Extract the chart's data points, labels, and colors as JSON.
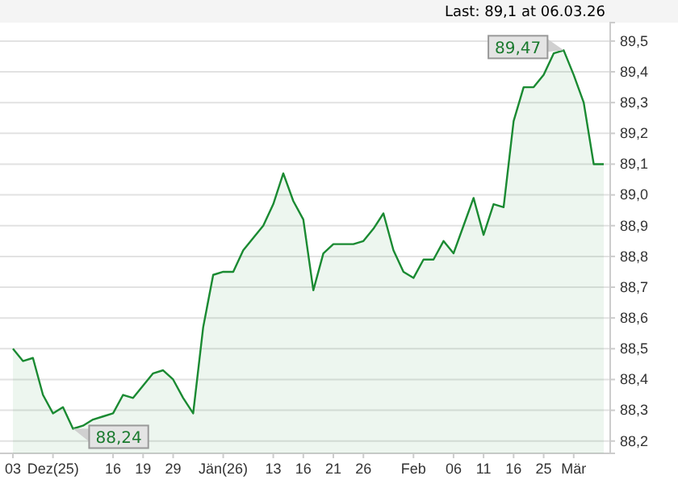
{
  "chart_data": {
    "type": "area",
    "title": "Last: 89,1 at 06.03.26",
    "categories": [
      "03",
      null,
      null,
      null,
      "Dez(25)",
      null,
      null,
      null,
      null,
      null,
      "16",
      null,
      null,
      "19",
      null,
      null,
      "29",
      null,
      null,
      null,
      null,
      "Jän(26)",
      null,
      null,
      null,
      null,
      "13",
      null,
      null,
      "16",
      null,
      null,
      "21",
      null,
      null,
      "26",
      null,
      null,
      null,
      null,
      "Feb",
      null,
      null,
      null,
      "06",
      null,
      null,
      "11",
      null,
      null,
      "16",
      null,
      null,
      "25",
      null,
      null,
      "Mär",
      null,
      null,
      null
    ],
    "series": [
      {
        "color": "#1a8a32",
        "values": [
          88.5,
          88.46,
          88.47,
          88.35,
          88.29,
          88.31,
          88.24,
          88.25,
          88.27,
          88.28,
          88.29,
          88.35,
          88.34,
          88.38,
          88.42,
          88.43,
          88.4,
          88.34,
          88.29,
          88.57,
          88.74,
          88.75,
          88.75,
          88.82,
          88.86,
          88.9,
          88.97,
          89.07,
          88.98,
          88.92,
          88.69,
          88.81,
          88.84,
          88.84,
          88.84,
          88.85,
          88.89,
          88.94,
          88.82,
          88.75,
          88.73,
          88.79,
          88.79,
          88.85,
          88.81,
          88.9,
          88.99,
          88.87,
          88.97,
          88.96,
          89.24,
          89.35,
          89.35,
          89.39,
          89.46,
          89.47,
          89.39,
          89.3,
          89.1,
          89.1
        ]
      }
    ],
    "ylim": [
      88.16,
      89.56
    ],
    "yticks": [
      {
        "value": 88.2,
        "label": "88,2"
      },
      {
        "value": 88.3,
        "label": "88,3"
      },
      {
        "value": 88.4,
        "label": "88,4"
      },
      {
        "value": 88.5,
        "label": "88,5"
      },
      {
        "value": 88.6,
        "label": "88,6"
      },
      {
        "value": 88.7,
        "label": "88,7"
      },
      {
        "value": 88.8,
        "label": "88,8"
      },
      {
        "value": 88.9,
        "label": "88,9"
      },
      {
        "value": 89.0,
        "label": "89,0"
      },
      {
        "value": 89.1,
        "label": "89,1"
      },
      {
        "value": 89.2,
        "label": "89,2"
      },
      {
        "value": 89.3,
        "label": "89,3"
      },
      {
        "value": 89.4,
        "label": "89,4"
      },
      {
        "value": 89.5,
        "label": "89,5"
      }
    ],
    "annotations": [
      "89,47",
      "88,24"
    ],
    "grid": "y",
    "marker": "none",
    "line_style": "solid"
  }
}
